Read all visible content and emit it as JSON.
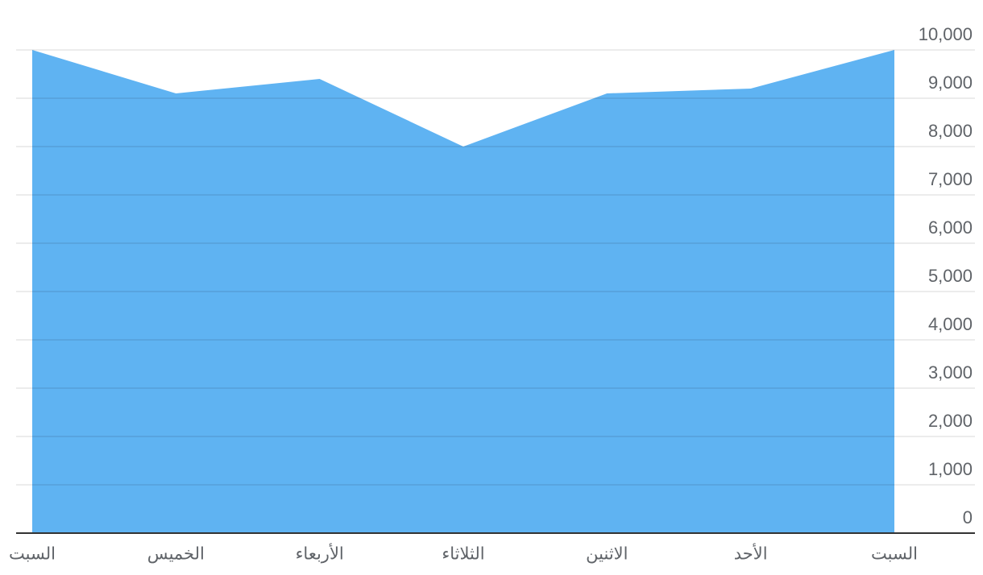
{
  "chart_data": {
    "type": "area",
    "categories": [
      "السبت",
      "الخميس",
      "الأربعاء",
      "الثلاثاء",
      "الاثنين",
      "الأحد",
      "السبت"
    ],
    "values": [
      10000,
      9100,
      9400,
      8000,
      9100,
      9200,
      10000
    ],
    "color": "#5fb3f2",
    "ylim": [
      0,
      10000
    ],
    "yticks": [
      0,
      {
        "value": 1000,
        "label": "1,000"
      },
      {
        "value": 2000,
        "label": "2,000"
      },
      {
        "value": 3000,
        "label": "3,000"
      },
      {
        "value": 4000,
        "label": "4,000"
      },
      {
        "value": 5000,
        "label": "5,000"
      },
      {
        "value": 6000,
        "label": "6,000"
      },
      {
        "value": 7000,
        "label": "7,000"
      },
      {
        "value": 8000,
        "label": "8,000"
      },
      {
        "value": 9000,
        "label": "9,000"
      },
      {
        "value": 10000,
        "label": "10,000"
      }
    ],
    "grid": true
  }
}
